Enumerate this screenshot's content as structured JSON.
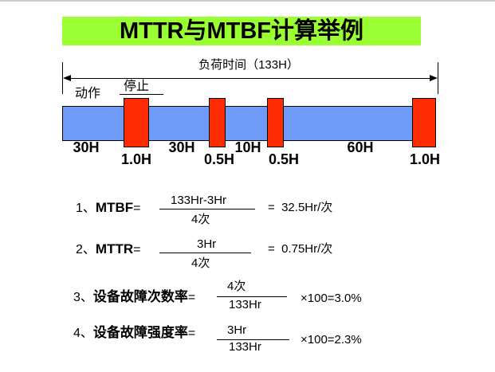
{
  "title": "MTTR与MTBF计算举例",
  "colors": {
    "banner": "#99ff33",
    "bar": "#6e9af8",
    "stop": "#ff2b00"
  },
  "diagram": {
    "load_time_label": "负荷时间（133H）",
    "action_label": "动作",
    "stop_label": "停止",
    "run_labels": [
      "30H",
      "30H",
      "10H",
      "60H"
    ],
    "stop_durations": [
      "1.0H",
      "0.5H",
      "0.5H",
      "1.0H"
    ]
  },
  "formulas": [
    {
      "no": "1、",
      "name": "MTBF",
      "eq": "=",
      "numerator": "133Hr-3Hr",
      "denominator": "4次",
      "result": "=  32.5Hr/次"
    },
    {
      "no": "2、",
      "name": "MTTR",
      "eq": "=",
      "numerator": "3Hr",
      "denominator": "4次",
      "result": "=  0.75Hr/次"
    },
    {
      "no": "3、",
      "name": "设备故障次数率",
      "eq": "=",
      "numerator": "4次",
      "denominator": "133Hr",
      "result": "×100=3.0%"
    },
    {
      "no": "4、",
      "name": "设备故障强度率",
      "eq": "=",
      "numerator": "3Hr",
      "denominator": "133Hr",
      "result": "×100=2.3%"
    }
  ]
}
